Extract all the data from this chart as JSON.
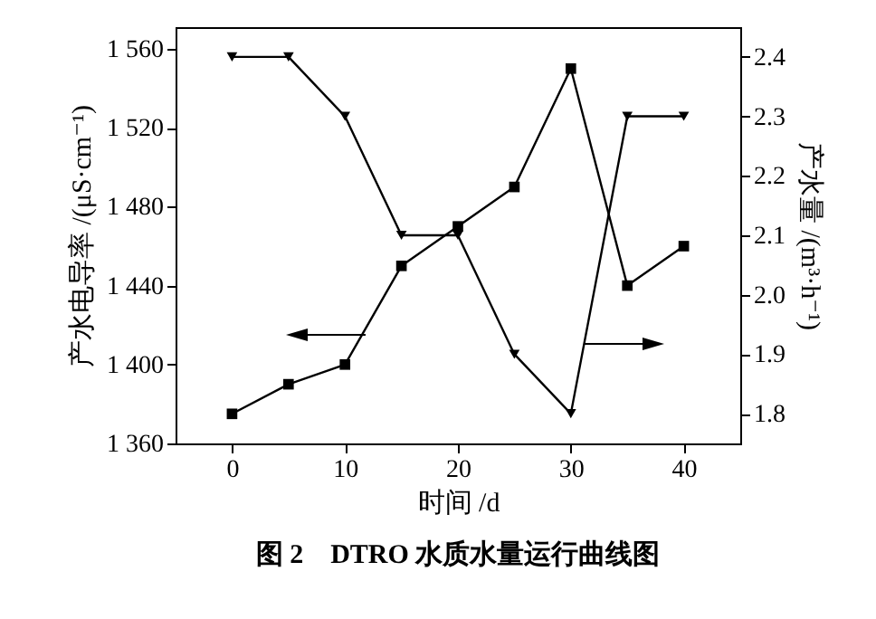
{
  "chart_data": {
    "type": "line",
    "xlabel": "时间 /d",
    "ylabel": "产水电导率 /(μS·cm⁻¹)",
    "y2label": "产水量 /(m³·h⁻¹)",
    "annotations": [
      "图 2　DTRO 水质水量运行曲线图"
    ],
    "x": [
      0,
      5,
      10,
      15,
      20,
      25,
      30,
      35,
      40
    ],
    "series": [
      {
        "color": "#000000",
        "marker": "square",
        "values": [
          1375,
          1390,
          1400,
          1450,
          1470,
          1490,
          1550,
          1440,
          1460
        ]
      },
      {
        "color": "#000000",
        "marker": "triangle",
        "axis": "y2",
        "values": [
          2.4,
          2.4,
          2.3,
          2.1,
          2.1,
          1.9,
          1.8,
          2.3,
          2.3
        ]
      }
    ],
    "xlim": [
      -5,
      45
    ],
    "xticks": [
      0,
      10,
      20,
      30,
      40
    ],
    "ylim": [
      1360,
      1571
    ],
    "yticks": [
      {
        "value": 1360,
        "label": "1 360"
      },
      {
        "value": 1400,
        "label": "1 400"
      },
      {
        "value": 1440,
        "label": "1 440"
      },
      {
        "value": 1480,
        "label": "1 480"
      },
      {
        "value": 1520,
        "label": "1 520"
      },
      {
        "value": 1560,
        "label": "1 560"
      }
    ],
    "y2lim": [
      1.75,
      2.45
    ],
    "y2ticks": [
      {
        "value": 1.8,
        "label": "1.8"
      },
      {
        "value": 1.9,
        "label": "1.9"
      },
      {
        "value": 2.0,
        "label": "2.0"
      },
      {
        "value": 2.1,
        "label": "2.1"
      },
      {
        "value": 2.2,
        "label": "2.2"
      },
      {
        "value": 2.3,
        "label": "2.3"
      },
      {
        "value": 2.4,
        "label": "2.4"
      }
    ],
    "tick_labels": "xy"
  }
}
